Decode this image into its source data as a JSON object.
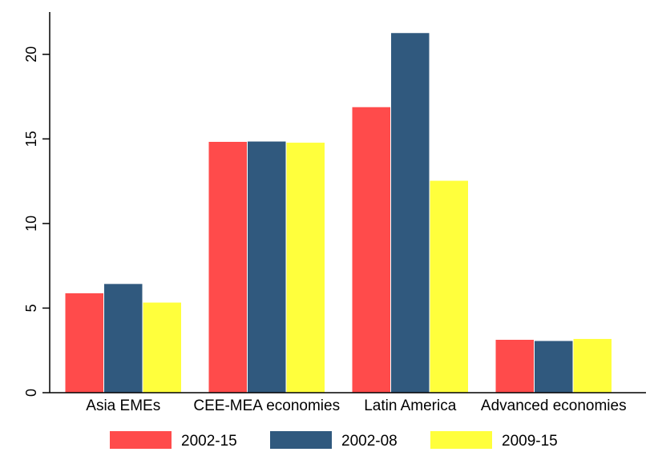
{
  "chart_data": {
    "type": "bar",
    "categories": [
      "Asia EMEs",
      "CEE-MEA economies",
      "Latin America",
      "Advanced economies"
    ],
    "series": [
      {
        "name": "2002-15",
        "color": "#ff4b4b",
        "values": [
          5.9,
          14.85,
          16.9,
          3.15
        ]
      },
      {
        "name": "2002-08",
        "color": "#30597e",
        "values": [
          6.45,
          14.87,
          21.28,
          3.08
        ]
      },
      {
        "name": "2009-15",
        "color": "#ffff3c",
        "values": [
          5.35,
          14.8,
          12.55,
          3.2
        ]
      }
    ],
    "ylim": [
      0,
      22.5
    ],
    "yticks": [
      0,
      5,
      10,
      15,
      20
    ],
    "ytick_labels": [
      "0",
      "5",
      "10",
      "15",
      "20"
    ],
    "grid": false,
    "legend_position": "bottom"
  }
}
